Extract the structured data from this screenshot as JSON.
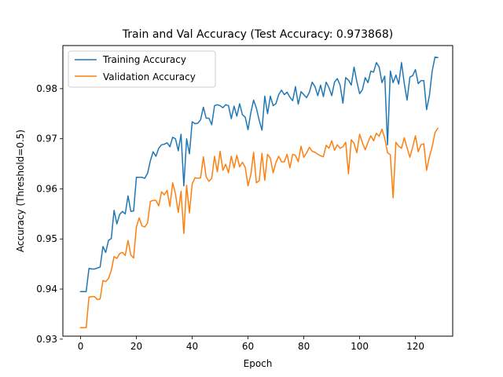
{
  "chart_data": {
    "type": "line",
    "title": "Train and Val Accuracy (Test Accuracy: 0.973868)",
    "xlabel": "Epoch",
    "ylabel": "Accuracy (Threshold=0.5)",
    "xlim": [
      -6.35,
      133.35
    ],
    "ylim": [
      0.9306,
      0.9886
    ],
    "xticks": [
      0,
      20,
      40,
      60,
      80,
      100,
      120
    ],
    "yticks": [
      0.93,
      0.94,
      0.95,
      0.96,
      0.97,
      0.98
    ],
    "ytick_labels": [
      "0.93",
      "0.94",
      "0.95",
      "0.96",
      "0.97",
      "0.98"
    ],
    "legend_position": "upper-left",
    "grid": false,
    "series": [
      {
        "name": "Training Accuracy",
        "color": "#1f77b4",
        "values": [
          0.9395,
          0.9395,
          0.9395,
          0.9441,
          0.944,
          0.944,
          0.9442,
          0.9444,
          0.9485,
          0.9473,
          0.9497,
          0.9501,
          0.9557,
          0.953,
          0.9549,
          0.9555,
          0.955,
          0.9586,
          0.9555,
          0.9556,
          0.9623,
          0.9623,
          0.9623,
          0.9621,
          0.9631,
          0.9656,
          0.9674,
          0.9665,
          0.9681,
          0.9688,
          0.9689,
          0.9692,
          0.9684,
          0.9703,
          0.97,
          0.9676,
          0.9709,
          0.9606,
          0.97,
          0.967,
          0.9734,
          0.973,
          0.9731,
          0.9738,
          0.9763,
          0.9741,
          0.9741,
          0.9728,
          0.9766,
          0.9768,
          0.9766,
          0.9762,
          0.9768,
          0.9766,
          0.974,
          0.9765,
          0.9745,
          0.977,
          0.9748,
          0.9743,
          0.9718,
          0.9752,
          0.9777,
          0.9761,
          0.9737,
          0.9717,
          0.9785,
          0.975,
          0.9785,
          0.9766,
          0.977,
          0.9788,
          0.9797,
          0.9788,
          0.9793,
          0.9783,
          0.9776,
          0.9804,
          0.9769,
          0.9794,
          0.9788,
          0.9782,
          0.9793,
          0.9813,
          0.9804,
          0.9786,
          0.9807,
          0.9784,
          0.9813,
          0.9802,
          0.9786,
          0.9813,
          0.982,
          0.9807,
          0.9771,
          0.9822,
          0.9817,
          0.9807,
          0.9843,
          0.9814,
          0.979,
          0.9798,
          0.9822,
          0.9812,
          0.9835,
          0.9833,
          0.9852,
          0.9843,
          0.9812,
          0.9825,
          0.9688,
          0.9835,
          0.9812,
          0.9827,
          0.9809,
          0.9852,
          0.981,
          0.9777,
          0.9823,
          0.9826,
          0.9838,
          0.981,
          0.9816,
          0.9816,
          0.9758,
          0.9786,
          0.9835,
          0.9863,
          0.9862
        ]
      },
      {
        "name": "Validation Accuracy",
        "color": "#ff7f0e",
        "values": [
          0.9323,
          0.9323,
          0.9323,
          0.9384,
          0.9385,
          0.9385,
          0.9379,
          0.938,
          0.9417,
          0.9415,
          0.9421,
          0.9437,
          0.9465,
          0.9461,
          0.9471,
          0.9473,
          0.9467,
          0.9497,
          0.9468,
          0.9462,
          0.9524,
          0.9542,
          0.9526,
          0.9524,
          0.9532,
          0.9575,
          0.9577,
          0.9577,
          0.9566,
          0.9594,
          0.9588,
          0.9597,
          0.9565,
          0.9612,
          0.959,
          0.9553,
          0.9595,
          0.9511,
          0.9607,
          0.9552,
          0.961,
          0.9622,
          0.9621,
          0.9622,
          0.9664,
          0.9624,
          0.9615,
          0.9621,
          0.9665,
          0.9634,
          0.9675,
          0.9637,
          0.9649,
          0.9632,
          0.9665,
          0.9642,
          0.9667,
          0.9644,
          0.9653,
          0.9643,
          0.9606,
          0.9628,
          0.9673,
          0.9612,
          0.9616,
          0.9671,
          0.9617,
          0.9669,
          0.9661,
          0.9632,
          0.9653,
          0.9665,
          0.9654,
          0.9654,
          0.9669,
          0.9642,
          0.9669,
          0.9667,
          0.9654,
          0.9685,
          0.9663,
          0.9672,
          0.9683,
          0.9675,
          0.9673,
          0.9669,
          0.9666,
          0.9664,
          0.9687,
          0.9681,
          0.9696,
          0.9677,
          0.9688,
          0.9681,
          0.9684,
          0.9693,
          0.963,
          0.9698,
          0.9691,
          0.9672,
          0.9709,
          0.9692,
          0.9678,
          0.9693,
          0.9706,
          0.9696,
          0.9711,
          0.9705,
          0.9719,
          0.9701,
          0.9672,
          0.9668,
          0.9582,
          0.9693,
          0.9685,
          0.9681,
          0.9702,
          0.9682,
          0.9663,
          0.9683,
          0.9706,
          0.9674,
          0.9688,
          0.969,
          0.9637,
          0.9664,
          0.9684,
          0.9712,
          0.9721
        ]
      }
    ]
  }
}
